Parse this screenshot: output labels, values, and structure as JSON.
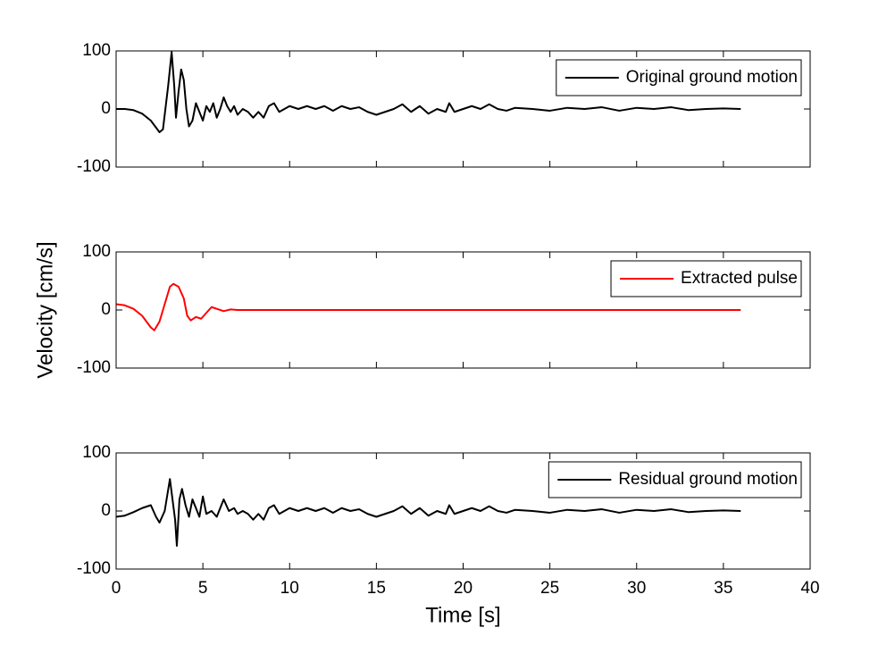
{
  "chart_data": [
    {
      "type": "line",
      "legend": "upper right",
      "show_xticklabels": false,
      "xlim": [
        0,
        40
      ],
      "xticks": [
        0,
        5,
        10,
        15,
        20,
        25,
        30,
        35,
        40
      ],
      "ylim": [
        -100,
        100
      ],
      "yticks": [
        -100,
        0,
        100
      ],
      "series": [
        {
          "name": "Original ground motion",
          "color": "#000000",
          "x": [
            0,
            0.5,
            1,
            1.5,
            2,
            2.5,
            2.7,
            3.0,
            3.2,
            3.35,
            3.45,
            3.6,
            3.75,
            3.9,
            4.05,
            4.2,
            4.4,
            4.6,
            4.8,
            5.0,
            5.2,
            5.4,
            5.6,
            5.8,
            6.0,
            6.2,
            6.4,
            6.6,
            6.8,
            7.0,
            7.3,
            7.6,
            7.9,
            8.2,
            8.5,
            8.8,
            9.1,
            9.4,
            9.7,
            10,
            10.5,
            11,
            11.5,
            12,
            12.5,
            13,
            13.5,
            14,
            14.5,
            15,
            15.5,
            16,
            16.5,
            17,
            17.5,
            18,
            18.5,
            19,
            19.2,
            19.5,
            20,
            20.5,
            21,
            21.5,
            22,
            22.5,
            23,
            24,
            25,
            26,
            27,
            28,
            29,
            30,
            31,
            32,
            33,
            34,
            35,
            36
          ],
          "values": [
            0,
            0,
            -2,
            -8,
            -20,
            -40,
            -35,
            40,
            98,
            40,
            -15,
            30,
            68,
            50,
            0,
            -30,
            -20,
            10,
            -5,
            -20,
            5,
            -5,
            10,
            -15,
            0,
            20,
            5,
            -5,
            5,
            -10,
            0,
            -5,
            -15,
            -5,
            -15,
            5,
            10,
            -5,
            0,
            5,
            0,
            5,
            0,
            5,
            -3,
            5,
            0,
            3,
            -5,
            -10,
            -5,
            0,
            8,
            -5,
            5,
            -8,
            0,
            -5,
            10,
            -5,
            0,
            5,
            0,
            8,
            0,
            -3,
            2,
            0,
            -3,
            2,
            0,
            3,
            -3,
            2,
            0,
            3,
            -2,
            0,
            1,
            0
          ]
        }
      ]
    },
    {
      "type": "line",
      "legend": "upper right",
      "show_xticklabels": false,
      "ylabel": "Velocity [cm/s]",
      "xlim": [
        0,
        40
      ],
      "xticks": [
        0,
        5,
        10,
        15,
        20,
        25,
        30,
        35,
        40
      ],
      "ylim": [
        -100,
        100
      ],
      "yticks": [
        -100,
        0,
        100
      ],
      "series": [
        {
          "name": "Extracted pulse",
          "color": "#ff0000",
          "x": [
            0,
            0.5,
            1,
            1.5,
            2.0,
            2.2,
            2.5,
            2.8,
            3.1,
            3.3,
            3.6,
            3.9,
            4.1,
            4.3,
            4.6,
            4.9,
            5.2,
            5.5,
            5.8,
            6.2,
            6.6,
            7,
            8,
            10,
            20,
            30,
            36
          ],
          "values": [
            10,
            8,
            2,
            -10,
            -30,
            -35,
            -20,
            10,
            40,
            45,
            40,
            20,
            -10,
            -18,
            -12,
            -15,
            -5,
            5,
            2,
            -2,
            1,
            0,
            0,
            0,
            0,
            0,
            0
          ]
        }
      ]
    },
    {
      "type": "line",
      "legend": "upper right",
      "show_xticklabels": true,
      "xlabel": "Time [s]",
      "xlim": [
        0,
        40
      ],
      "xticks": [
        0,
        5,
        10,
        15,
        20,
        25,
        30,
        35,
        40
      ],
      "ylim": [
        -100,
        100
      ],
      "yticks": [
        -100,
        0,
        100
      ],
      "series": [
        {
          "name": "Residual ground motion",
          "color": "#000000",
          "x": [
            0,
            0.5,
            1,
            1.5,
            2.0,
            2.3,
            2.5,
            2.8,
            3.1,
            3.25,
            3.4,
            3.5,
            3.65,
            3.8,
            4.0,
            4.2,
            4.4,
            4.6,
            4.8,
            5.0,
            5.2,
            5.5,
            5.8,
            6.2,
            6.5,
            6.8,
            7.0,
            7.3,
            7.6,
            7.9,
            8.2,
            8.5,
            8.8,
            9.1,
            9.4,
            9.7,
            10,
            10.5,
            11,
            11.5,
            12,
            12.5,
            13,
            13.5,
            14,
            14.5,
            15,
            15.5,
            16,
            16.5,
            17,
            17.5,
            18,
            18.5,
            19,
            19.2,
            19.5,
            20,
            20.5,
            21,
            21.5,
            22,
            22.5,
            23,
            24,
            25,
            26,
            27,
            28,
            29,
            30,
            31,
            32,
            33,
            34,
            35,
            36
          ],
          "values": [
            -10,
            -8,
            -2,
            5,
            10,
            -10,
            -20,
            0,
            55,
            20,
            -15,
            -60,
            20,
            38,
            10,
            -10,
            20,
            5,
            -10,
            25,
            -5,
            0,
            -10,
            20,
            0,
            5,
            -5,
            0,
            -5,
            -15,
            -5,
            -15,
            5,
            10,
            -5,
            0,
            5,
            0,
            5,
            0,
            5,
            -3,
            5,
            0,
            3,
            -5,
            -10,
            -5,
            0,
            8,
            -5,
            5,
            -8,
            0,
            -5,
            10,
            -5,
            0,
            5,
            0,
            8,
            0,
            -3,
            2,
            0,
            -3,
            2,
            0,
            3,
            -3,
            2,
            0,
            3,
            -2,
            0,
            1,
            0
          ]
        }
      ]
    }
  ]
}
